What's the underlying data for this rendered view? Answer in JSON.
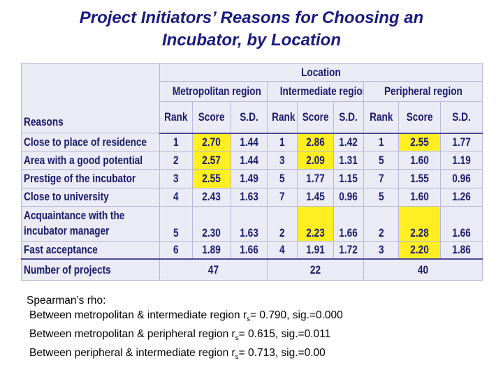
{
  "title_lines": [
    "Project Initiators’ Reasons for Choosing an",
    "Incubator, by Location"
  ],
  "table": {
    "location": "Location",
    "regions": [
      "Metropolitan region",
      "Intermediate region",
      "Peripheral region"
    ],
    "reasons_header": "Reasons",
    "column_headers": [
      [
        "Rank",
        "Score",
        "S.D."
      ],
      [
        "Rank",
        "Score",
        "S.D."
      ],
      [
        "Rank",
        "Score",
        "S.D."
      ]
    ],
    "rows": [
      {
        "reason": [
          "Close to place of residence"
        ],
        "cells": [
          "1",
          "2.70",
          "1.44",
          "1",
          "2.86",
          "1.42",
          "1",
          "2.55",
          "1.77"
        ]
      },
      {
        "reason": [
          "Area with a good potential"
        ],
        "cells": [
          "2",
          "2.57",
          "1.44",
          "3",
          "2.09",
          "1.31",
          "5",
          "1.60",
          "1.19"
        ]
      },
      {
        "reason": [
          "Prestige of  the incubator"
        ],
        "cells": [
          "3",
          "2.55",
          "1.49",
          "5",
          "1.77",
          "1.15",
          "7",
          "1.55",
          "0.96"
        ]
      },
      {
        "reason": [
          "Close to university"
        ],
        "cells": [
          "4",
          "2.43",
          "1.63",
          "7",
          "1.45",
          "0.96",
          "5",
          "1.60",
          "1.26"
        ]
      },
      {
        "reason": [
          "Acquaintance with the",
          "incubator manager"
        ],
        "cells": [
          "5",
          "2.30",
          "1.63",
          "2",
          "2.23",
          "1.66",
          "2",
          "2.28",
          "1.66"
        ]
      },
      {
        "reason": [
          "Fast acceptance"
        ],
        "cells": [
          "6",
          "1.89",
          "1.66",
          "4",
          "1.91",
          "1.72",
          "3",
          "2.20",
          "1.86"
        ]
      }
    ],
    "projects_label": "Number of projects",
    "projects": [
      "47",
      "22",
      "40"
    ]
  },
  "notes": {
    "heading": "Spearman’s rho:",
    "lines": [
      {
        "text": "Between metropolitan & intermediate region r",
        "sub": "s",
        "rest": "= 0.790, sig.=0.000"
      },
      {
        "text": "Between metropolitan & peripheral region r",
        "sub": "s",
        "rest": "= 0.615, sig.=0.011"
      },
      {
        "text": "Between peripheral & intermediate region r",
        "sub": "s",
        "rest": "= 0.713, sig.=0.00"
      }
    ]
  }
}
